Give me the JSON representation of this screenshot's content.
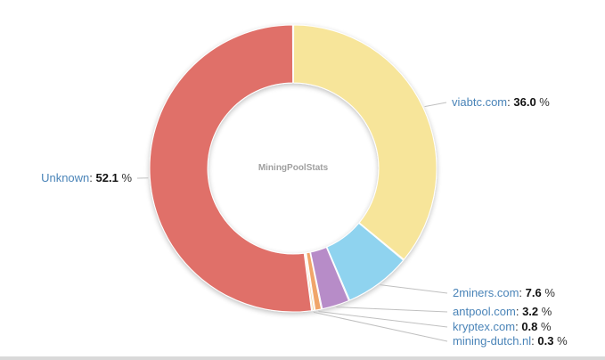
{
  "chart_data": {
    "type": "pie",
    "donut": true,
    "watermark": "MiningPoolStats",
    "slices": [
      {
        "label": "viabtc.com",
        "value": 36.0,
        "color": "#f7e59a"
      },
      {
        "label": "2miners.com",
        "value": 7.6,
        "color": "#8fd3ef"
      },
      {
        "label": "antpool.com",
        "value": 3.2,
        "color": "#b78cc8"
      },
      {
        "label": "kryptex.com",
        "value": 0.8,
        "color": "#f0a56b"
      },
      {
        "label": "mining-dutch.nl",
        "value": 0.3,
        "color": "#f5c98a"
      },
      {
        "label": "Unknown",
        "value": 52.1,
        "color": "#e07069"
      }
    ],
    "value_suffix": "%"
  }
}
